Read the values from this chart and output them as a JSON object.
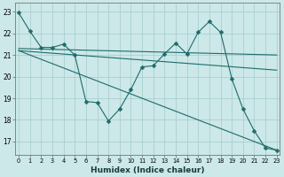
{
  "bg_color": "#cce8e8",
  "grid_color": "#aacfcf",
  "line_color": "#1e6b6b",
  "xlabel": "Humidex (Indice chaleur)",
  "ylabel_ticks": [
    17,
    18,
    19,
    20,
    21,
    22,
    23
  ],
  "xlim": [
    -0.3,
    23.3
  ],
  "ylim": [
    16.4,
    23.4
  ],
  "series": [
    {
      "x": [
        0,
        1,
        2,
        3,
        4,
        5,
        6,
        7,
        8,
        9,
        10,
        11,
        12,
        13,
        14,
        15,
        16,
        17,
        18,
        19,
        20,
        21,
        22,
        23
      ],
      "y": [
        22.95,
        22.1,
        21.35,
        21.35,
        21.5,
        21.0,
        18.85,
        18.8,
        17.95,
        18.5,
        19.4,
        20.45,
        20.5,
        21.05,
        21.55,
        21.05,
        22.05,
        22.55,
        22.05,
        19.9,
        18.5,
        17.5,
        16.7,
        16.6
      ],
      "marker": "D",
      "markersize": 2.5
    },
    {
      "x": [
        0,
        23
      ],
      "y": [
        21.3,
        21.0
      ],
      "marker": null
    },
    {
      "x": [
        0,
        23
      ],
      "y": [
        21.2,
        20.3
      ],
      "marker": null
    },
    {
      "x": [
        0,
        23
      ],
      "y": [
        21.2,
        16.6
      ],
      "marker": null
    }
  ]
}
